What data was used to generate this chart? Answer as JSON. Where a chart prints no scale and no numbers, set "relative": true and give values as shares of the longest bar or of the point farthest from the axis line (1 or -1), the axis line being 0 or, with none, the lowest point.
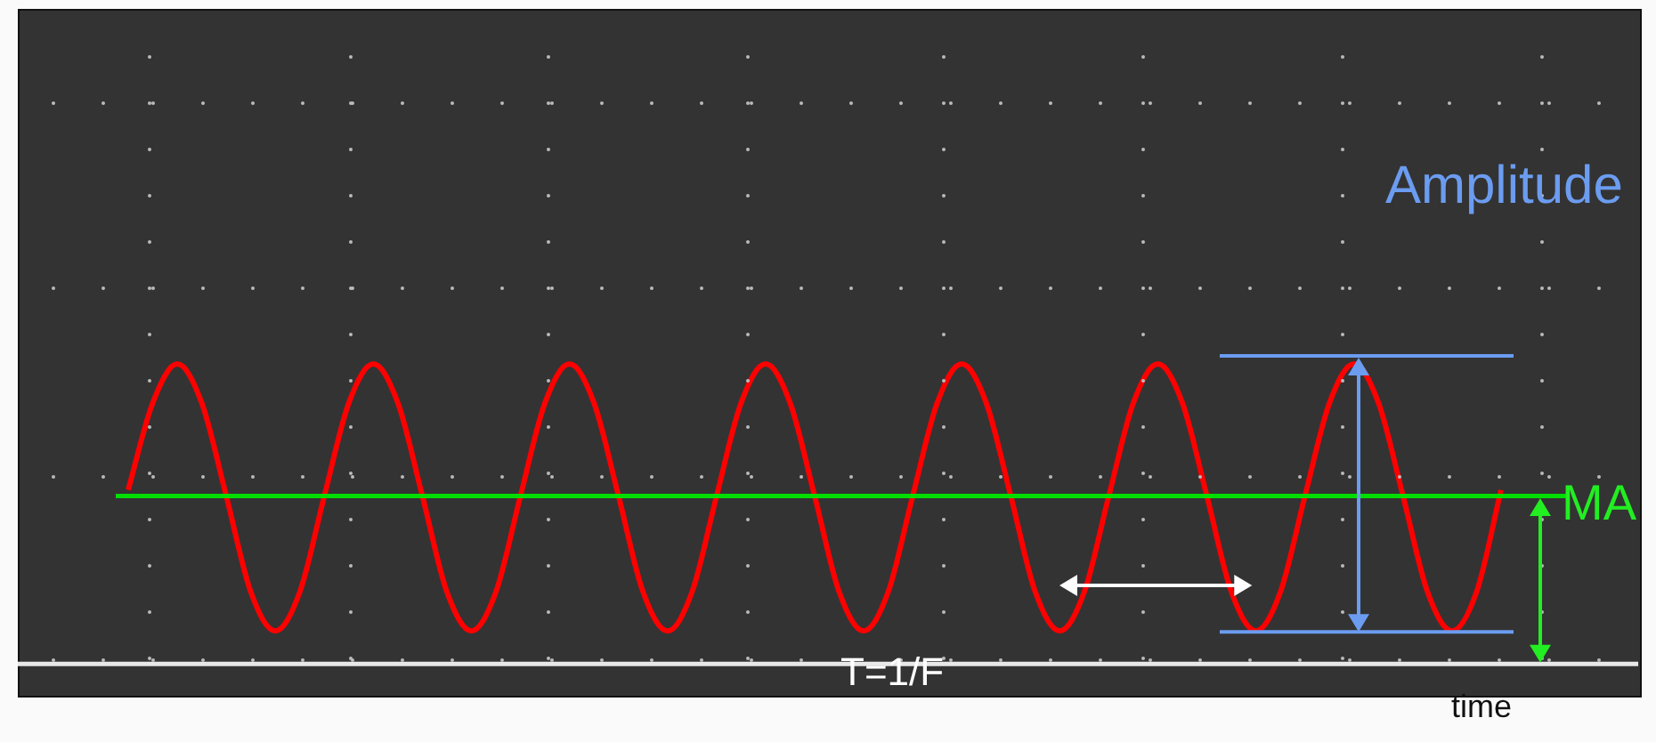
{
  "chart_data": {
    "type": "line",
    "relative": true,
    "categories": [
      null,
      null,
      null,
      null,
      null,
      null,
      null,
      null,
      null,
      null,
      null,
      null,
      null,
      null,
      null,
      null,
      null,
      null,
      null,
      null,
      null,
      null,
      null,
      null,
      null,
      null,
      null,
      null,
      null,
      null,
      null,
      null,
      null,
      null,
      null,
      null,
      null,
      null,
      null,
      null,
      null,
      null,
      null,
      null,
      null,
      null,
      null,
      null,
      null,
      null,
      null,
      null,
      null,
      null,
      null,
      null,
      null
    ],
    "series": [
      {
        "color": "#ff0000",
        "values": [
          0.58,
          0.87,
          1,
          0.87,
          0.56,
          0.24,
          0.11,
          0.24,
          0.56,
          0.87,
          1,
          0.87,
          0.56,
          0.24,
          0.11,
          0.24,
          0.56,
          0.87,
          1,
          0.87,
          0.56,
          0.24,
          0.11,
          0.24,
          0.56,
          0.87,
          1,
          0.87,
          0.56,
          0.24,
          0.11,
          0.24,
          0.56,
          0.87,
          1,
          0.87,
          0.56,
          0.24,
          0.11,
          0.24,
          0.56,
          0.87,
          1,
          0.87,
          0.56,
          0.24,
          0.11,
          0.24,
          0.56,
          0.87,
          1,
          0.87,
          0.56,
          0.24,
          0.11,
          0.24,
          0.58
        ]
      }
    ],
    "ref_lines": [
      {
        "axis": "y",
        "value": 0.56,
        "color": "#00dd00"
      }
    ],
    "annotations": [
      "Amplitude",
      "MA",
      "T=1/F",
      "time"
    ],
    "marker": "none",
    "line_style": "solid",
    "legend": false
  }
}
